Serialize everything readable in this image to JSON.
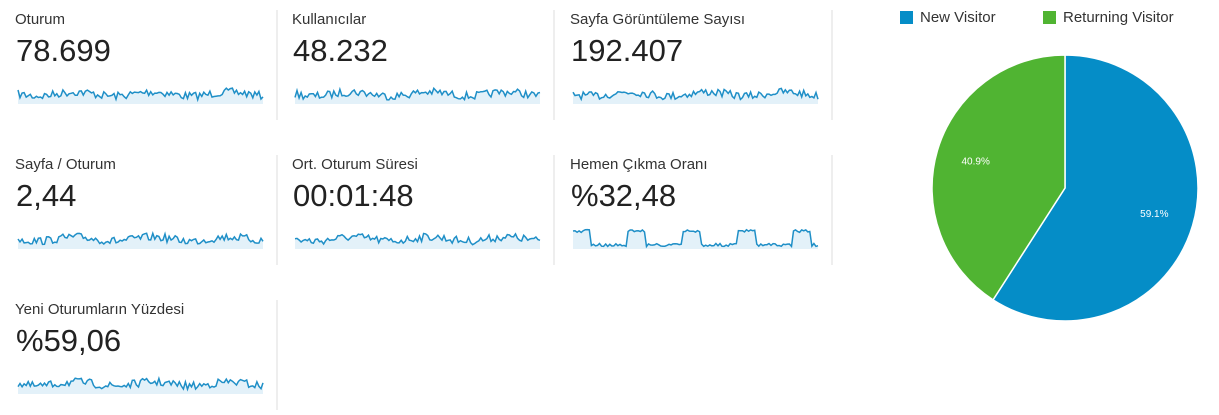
{
  "metrics": [
    {
      "label": "Oturum",
      "value": "78.699"
    },
    {
      "label": "Kullanıcılar",
      "value": "48.232"
    },
    {
      "label": "Sayfa Görüntüleme Sayısı",
      "value": "192.407"
    },
    {
      "label": "Sayfa / Oturum",
      "value": "2,44"
    },
    {
      "label": "Ort. Oturum Süresi",
      "value": "00:01:48"
    },
    {
      "label": "Hemen Çıkma Oranı",
      "value": "%32,48"
    },
    {
      "label": "Yeni Oturumların Yüzdesi",
      "value": "%59,06"
    }
  ],
  "chart_data": {
    "type": "pie",
    "categories": [
      "New Visitor",
      "Returning Visitor"
    ],
    "values": [
      59.1,
      40.9
    ],
    "value_labels": [
      "59.1%",
      "40.9%"
    ],
    "colors": [
      "#058dc7",
      "#50b432"
    ]
  }
}
